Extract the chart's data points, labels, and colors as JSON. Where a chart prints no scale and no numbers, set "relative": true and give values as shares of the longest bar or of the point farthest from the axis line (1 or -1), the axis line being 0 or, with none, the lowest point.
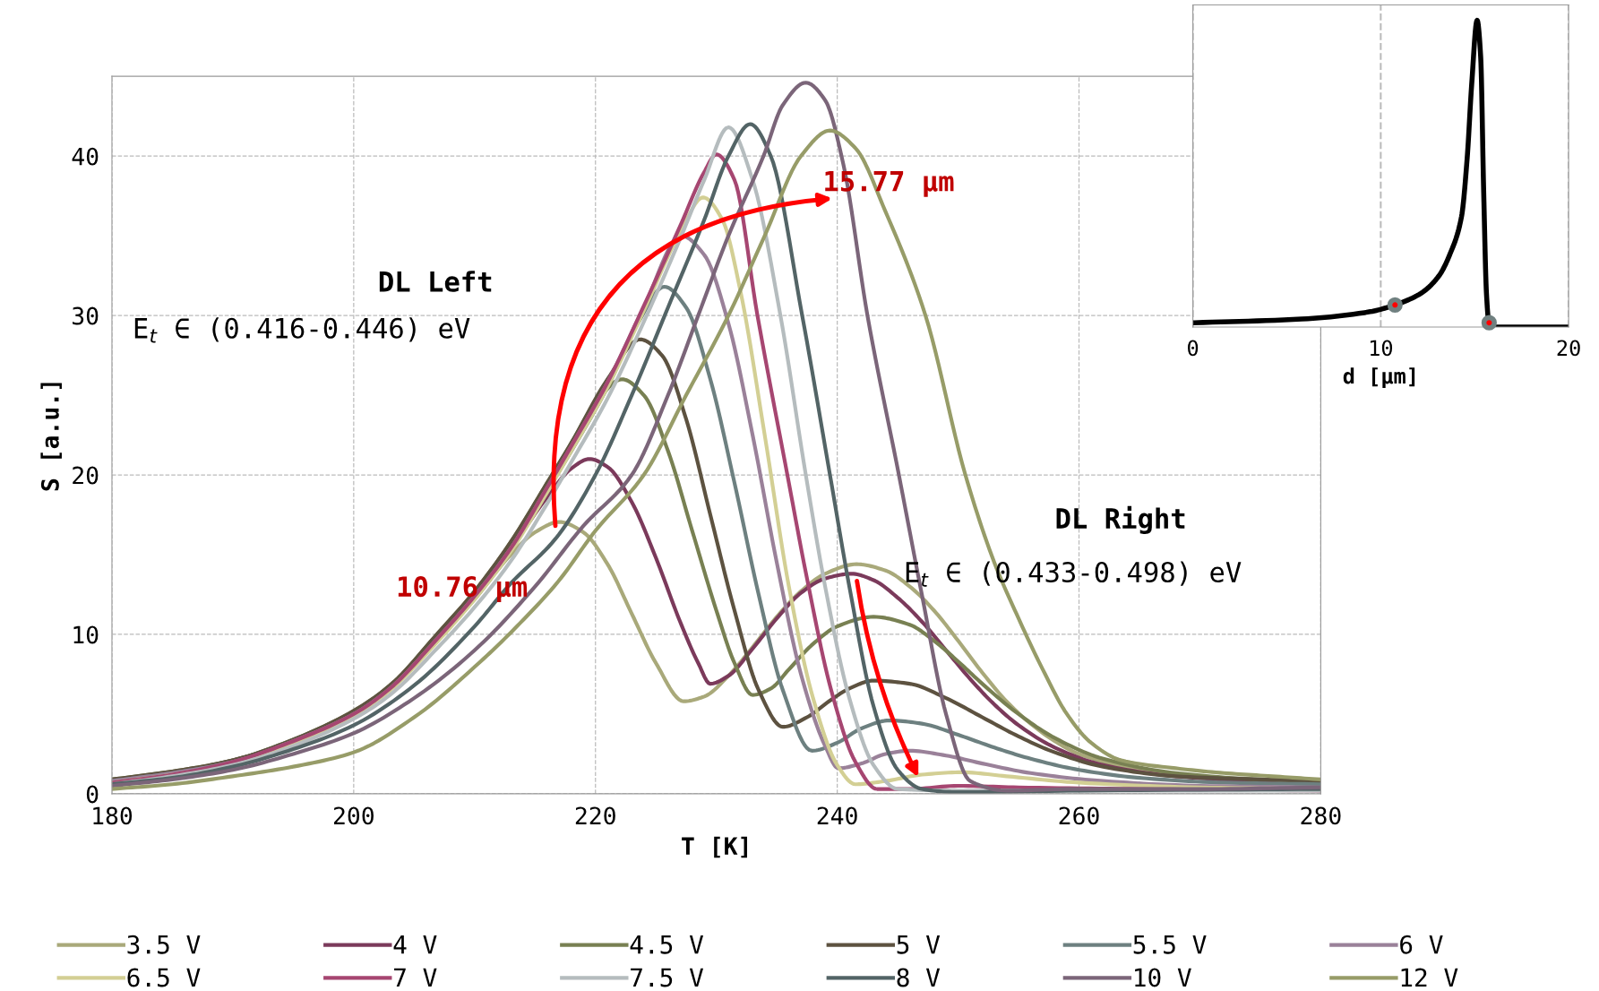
{
  "chart_data": [
    {
      "type": "line",
      "xlabel": "T [K]",
      "ylabel": "S [a.u.]",
      "xlim": [
        180,
        280
      ],
      "ylim": [
        0,
        45
      ],
      "xticks": [
        180,
        200,
        220,
        240,
        260,
        280
      ],
      "yticks": [
        0,
        10,
        20,
        30,
        40
      ],
      "grid": true,
      "legend": "bottom",
      "line_style": "solid",
      "annotations": [
        "DL Left",
        "E$_{t}$ ∈ (0.416-0.446) eV",
        "DL Right",
        "E$_{t}$ ∈ (0.433-0.498) eV",
        "10.76 µm",
        "15.77 µm"
      ],
      "series": [
        {
          "name": "3.5 V",
          "color": "#a9a97a",
          "x": [
            180,
            185,
            190,
            195,
            200,
            203,
            207,
            210,
            213,
            215,
            217,
            219,
            221,
            223,
            225,
            227.3,
            229,
            231,
            233,
            235,
            237,
            239,
            241.6,
            244,
            246,
            248,
            250,
            252,
            254,
            256,
            258,
            260,
            265,
            270,
            275,
            280
          ],
          "values": [
            0.7,
            1.2,
            2.0,
            3.2,
            5.0,
            6.5,
            9.7,
            12.2,
            15.0,
            16.4,
            17.05,
            16.4,
            14.4,
            11.3,
            8.2,
            5.8,
            6.1,
            7.4,
            9.2,
            11.1,
            12.7,
            13.8,
            14.4,
            14.0,
            13.0,
            11.5,
            9.6,
            7.6,
            5.8,
            4.4,
            3.3,
            2.5,
            1.5,
            1.0,
            0.8,
            0.7
          ]
        },
        {
          "name": "4 V",
          "color": "#7b3a5b",
          "x": [
            180,
            185,
            190,
            195,
            200,
            203,
            207,
            210,
            213,
            216,
            218,
            219.5,
            221,
            223,
            225,
            227,
            228.5,
            229.5,
            231,
            233,
            235,
            237,
            239,
            241.2,
            243,
            245,
            247,
            249,
            251,
            253,
            255,
            258,
            262,
            268,
            275,
            280
          ],
          "values": [
            0.8,
            1.3,
            2.1,
            3.3,
            5.1,
            6.7,
            9.9,
            12.5,
            15.4,
            18.6,
            20.4,
            21.0,
            20.5,
            18.3,
            14.8,
            10.8,
            8.2,
            6.9,
            7.4,
            9.1,
            11.0,
            12.6,
            13.5,
            13.8,
            13.4,
            12.3,
            10.8,
            9.0,
            7.2,
            5.6,
            4.3,
            2.9,
            1.8,
            1.1,
            0.8,
            0.7
          ]
        },
        {
          "name": "4.5 V",
          "color": "#788052",
          "x": [
            180,
            185,
            190,
            195,
            200,
            203,
            207,
            210,
            213,
            216,
            218,
            220,
            222.2,
            224,
            226,
            228,
            230,
            231.5,
            233,
            234.5,
            236,
            238,
            240,
            243,
            246,
            248,
            250,
            252,
            255,
            258,
            262,
            268,
            275,
            280
          ],
          "values": [
            0.9,
            1.4,
            2.1,
            3.4,
            5.2,
            6.8,
            10.1,
            12.7,
            15.8,
            19.5,
            22.0,
            24.5,
            26.0,
            25.0,
            21.5,
            16.5,
            11.5,
            8.2,
            6.2,
            6.6,
            7.8,
            9.4,
            10.5,
            11.1,
            10.6,
            9.6,
            8.3,
            6.9,
            5.0,
            3.5,
            2.2,
            1.3,
            0.9,
            0.8
          ]
        },
        {
          "name": "5 V",
          "color": "#5d5240",
          "x": [
            180,
            185,
            190,
            195,
            200,
            203,
            207,
            210,
            213,
            216,
            218,
            221,
            223.7,
            225.5,
            227.5,
            229.5,
            231.5,
            233.5,
            235.5,
            237.5,
            239.5,
            241,
            243,
            246,
            249,
            252,
            255,
            258,
            262,
            268,
            275,
            280
          ],
          "values": [
            0.9,
            1.4,
            2.1,
            3.4,
            5.2,
            6.8,
            10.1,
            12.7,
            15.8,
            19.5,
            22.0,
            26.0,
            28.5,
            27.5,
            23.5,
            17.5,
            11.5,
            6.5,
            4.2,
            4.8,
            5.9,
            6.6,
            7.1,
            6.9,
            6.0,
            4.8,
            3.6,
            2.6,
            1.7,
            1.1,
            0.9,
            0.8
          ]
        },
        {
          "name": "5.5 V",
          "color": "#6d8080",
          "x": [
            180,
            185,
            190,
            195,
            200,
            203,
            207,
            210,
            213,
            216,
            218,
            221,
            223.5,
            225.7,
            227.5,
            229.5,
            231.5,
            233.5,
            235.5,
            237.9,
            240,
            242,
            244.3,
            247,
            250,
            253,
            256,
            260,
            265,
            272,
            280
          ],
          "values": [
            0.8,
            1.3,
            2.0,
            3.3,
            5.0,
            6.6,
            9.8,
            12.4,
            15.4,
            19.0,
            21.5,
            25.5,
            29.5,
            31.8,
            30.5,
            26.0,
            19.5,
            12.5,
            6.5,
            2.7,
            3.2,
            4.1,
            4.6,
            4.4,
            3.7,
            2.9,
            2.2,
            1.5,
            1.0,
            0.7,
            0.6
          ]
        },
        {
          "name": "6 V",
          "color": "#9a8199",
          "x": [
            180,
            185,
            190,
            195,
            200,
            203,
            207,
            210,
            213,
            216,
            218,
            221,
            224,
            227.1,
            229,
            231,
            233,
            235,
            237,
            239,
            240.1,
            242,
            244,
            246,
            249,
            252,
            256,
            262,
            270,
            280
          ],
          "values": [
            0.8,
            1.3,
            2.0,
            3.3,
            5.0,
            6.6,
            9.8,
            12.4,
            15.4,
            19.2,
            21.8,
            25.8,
            30.5,
            35.0,
            33.8,
            29.5,
            22.5,
            14.5,
            7.5,
            3.0,
            1.6,
            1.9,
            2.5,
            2.7,
            2.4,
            1.9,
            1.3,
            0.8,
            0.5,
            0.4
          ]
        },
        {
          "name": "6.5 V",
          "color": "#d3cf94",
          "x": [
            180,
            185,
            190,
            195,
            200,
            203,
            207,
            210,
            213,
            216,
            218,
            221,
            224,
            227,
            228.9,
            230.5,
            232,
            234,
            236,
            238,
            240,
            241.5,
            244,
            247,
            250.3,
            254,
            260,
            270,
            280
          ],
          "values": [
            0.7,
            1.2,
            1.9,
            3.2,
            4.9,
            6.5,
            9.6,
            12.2,
            15.2,
            18.9,
            21.5,
            25.5,
            30.3,
            35.2,
            37.4,
            36.0,
            31.5,
            22.5,
            13.0,
            6.0,
            1.8,
            0.6,
            0.8,
            1.2,
            1.35,
            1.1,
            0.7,
            0.4,
            0.3
          ]
        },
        {
          "name": "7 V",
          "color": "#a64671",
          "x": [
            180,
            185,
            190,
            195,
            200,
            203,
            207,
            210,
            213,
            216,
            218,
            221,
            224,
            227,
            229,
            230,
            231.5,
            233.4,
            235.9,
            237.5,
            239.5,
            241.5,
            243.3,
            246,
            250,
            255,
            265,
            280
          ],
          "values": [
            0.7,
            1.2,
            2.0,
            3.3,
            5.0,
            6.6,
            9.8,
            12.4,
            15.4,
            19.2,
            21.8,
            25.8,
            30.6,
            35.6,
            39.0,
            40.1,
            38.5,
            30.0,
            19.9,
            13.5,
            6.5,
            2.0,
            0.3,
            0.3,
            0.5,
            0.4,
            0.3,
            0.2
          ]
        },
        {
          "name": "7.5 V",
          "color": "#b5bcbe",
          "x": [
            180,
            185,
            190,
            195,
            200,
            203,
            207,
            210,
            213,
            216,
            218,
            221,
            224,
            227,
            229,
            231,
            233,
            235.3,
            237.4,
            239,
            241,
            243,
            245,
            250,
            280
          ],
          "values": [
            0.6,
            1.1,
            1.8,
            3.0,
            4.7,
            6.2,
            9.2,
            11.7,
            14.6,
            18.2,
            20.8,
            24.8,
            29.6,
            34.8,
            38.5,
            41.8,
            38.5,
            30.0,
            20.0,
            13.0,
            6.0,
            1.8,
            0.3,
            0.2,
            0.2
          ]
        },
        {
          "name": "8 V",
          "color": "#536466",
          "x": [
            180,
            185,
            190,
            195,
            200,
            205,
            210,
            213,
            216.7,
            220,
            223,
            226,
            229,
            231,
            232.8,
            234.5,
            237.1,
            239.4,
            241,
            243,
            245,
            247,
            250,
            260,
            280
          ],
          "values": [
            0.6,
            1.0,
            1.7,
            2.8,
            4.3,
            6.8,
            10.5,
            13.2,
            16.0,
            20.0,
            25.0,
            30.5,
            36.0,
            40.0,
            42.0,
            40.0,
            30.0,
            20.0,
            13.0,
            5.5,
            1.5,
            0.3,
            0.1,
            0.2,
            0.3
          ]
        },
        {
          "name": "10 V",
          "color": "#7b6579",
          "x": [
            180,
            185,
            190,
            195,
            200,
            205,
            210,
            215,
            219,
            223,
            226,
            228.5,
            231,
            233.9,
            235.5,
            237.4,
            239,
            240.5,
            242.5,
            245.1,
            247,
            249,
            251,
            254,
            260,
            270,
            280
          ],
          "values": [
            0.5,
            0.9,
            1.5,
            2.5,
            3.8,
            6.0,
            9.0,
            13.0,
            16.8,
            20.0,
            25.0,
            30.0,
            35.0,
            40.0,
            43.2,
            44.6,
            43.5,
            39.5,
            30.0,
            20.0,
            12.5,
            5.0,
            0.8,
            0.2,
            0.3,
            0.3,
            0.4
          ]
        },
        {
          "name": "12 V",
          "color": "#979c68",
          "x": [
            180,
            185,
            190,
            195,
            200,
            205,
            210.5,
            213.5,
            216.9,
            220,
            224,
            227.5,
            231,
            234,
            237,
            239.4,
            241.5,
            244,
            247.3,
            250.6,
            253,
            255,
            257,
            259,
            261,
            263.5,
            268,
            272,
            276,
            280
          ],
          "values": [
            0.3,
            0.6,
            1.1,
            1.7,
            2.6,
            4.8,
            8.3,
            10.5,
            13.3,
            16.5,
            20.0,
            25.0,
            30.0,
            35.0,
            40.0,
            41.6,
            40.5,
            36.5,
            30.0,
            20.0,
            14.5,
            11.0,
            7.8,
            5.0,
            3.2,
            2.1,
            1.6,
            1.3,
            1.1,
            0.9
          ]
        }
      ]
    },
    {
      "type": "line",
      "xlabel": "d [µm]",
      "xlim": [
        0,
        20
      ],
      "xticks": [
        0,
        10,
        20
      ],
      "relative": true,
      "grid": "x",
      "series": [
        {
          "color": "#000000",
          "x": [
            0.08,
            5.8,
            9.44,
            10.75,
            12.14,
            13.1,
            13.7,
            14.3,
            14.6,
            14.84,
            15.13,
            15.32,
            15.48,
            15.63,
            15.76,
            16.1,
            20
          ],
          "values": [
            0.014,
            0.026,
            0.05,
            0.072,
            0.11,
            0.167,
            0.24,
            0.36,
            0.55,
            0.79,
            1.0,
            0.88,
            0.44,
            0.106,
            0.014,
            0,
            0
          ]
        },
        {
          "type": "scatter",
          "marker": "circle",
          "color": "#ff0000",
          "x": [
            10.76,
            15.77
          ],
          "values": [
            0.072,
            0.014
          ]
        }
      ]
    }
  ]
}
